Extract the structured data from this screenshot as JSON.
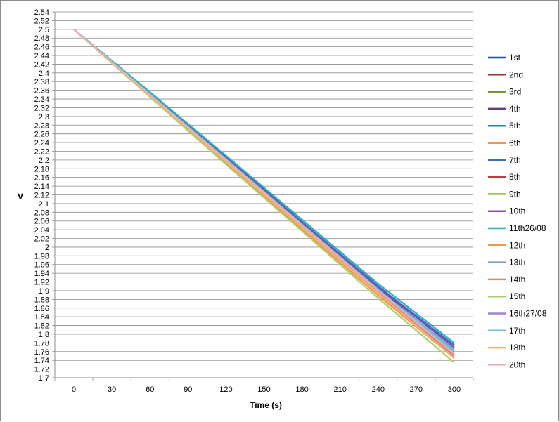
{
  "chart_data": {
    "type": "line",
    "title": "",
    "xlabel": "Time (s)",
    "ylabel": "V",
    "x": [
      0,
      60,
      120,
      180,
      240,
      300
    ],
    "xticks": [
      "0",
      "30",
      "60",
      "90",
      "120",
      "150",
      "180",
      "210",
      "240",
      "270",
      "300"
    ],
    "ylim": [
      1.7,
      2.54
    ],
    "yticks": [
      "1.7",
      "1.72",
      "1.74",
      "1.76",
      "1.78",
      "1.8",
      "1.82",
      "1.84",
      "1.86",
      "1.88",
      "1.9",
      "1.92",
      "1.94",
      "1.96",
      "1.98",
      "2",
      "2.02",
      "2.04",
      "2.06",
      "2.08",
      "2.1",
      "2.12",
      "2.14",
      "2.16",
      "2.18",
      "2.2",
      "2.22",
      "2.24",
      "2.26",
      "2.28",
      "2.3",
      "2.32",
      "2.34",
      "2.36",
      "2.38",
      "2.4",
      "2.42",
      "2.44",
      "2.46",
      "2.48",
      "2.5",
      "2.52",
      "2.54"
    ],
    "grid": "horizontal",
    "legend_position": "right",
    "series": [
      {
        "name": "1st",
        "color": "#1f4e9c",
        "values": [
          2.5,
          2.352,
          2.205,
          2.056,
          1.908,
          1.77
        ]
      },
      {
        "name": "2nd",
        "color": "#9e2a2a",
        "values": [
          2.5,
          2.35,
          2.2,
          2.049,
          1.899,
          1.75
        ]
      },
      {
        "name": "3rd",
        "color": "#6f8f2a",
        "values": [
          2.5,
          2.351,
          2.203,
          2.052,
          1.903,
          1.755
        ]
      },
      {
        "name": "4th",
        "color": "#5b3f86",
        "values": [
          2.5,
          2.352,
          2.204,
          2.055,
          1.906,
          1.76
        ]
      },
      {
        "name": "5th",
        "color": "#1f8fa3",
        "values": [
          2.5,
          2.353,
          2.207,
          2.058,
          1.911,
          1.77
        ]
      },
      {
        "name": "6th",
        "color": "#e0791d",
        "values": [
          2.5,
          2.349,
          2.199,
          2.046,
          1.896,
          1.745
        ]
      },
      {
        "name": "7th",
        "color": "#3a6fc4",
        "values": [
          2.5,
          2.353,
          2.206,
          2.057,
          1.91,
          1.775
        ]
      },
      {
        "name": "8th",
        "color": "#c43a37",
        "values": [
          2.5,
          2.348,
          2.196,
          2.046,
          1.895,
          1.745
        ]
      },
      {
        "name": "9th",
        "color": "#8fbf3a",
        "values": [
          2.5,
          2.35,
          2.198,
          2.049,
          1.898,
          1.75
        ]
      },
      {
        "name": "10th",
        "color": "#7a4fb0",
        "values": [
          2.5,
          2.352,
          2.205,
          2.056,
          1.908,
          1.77
        ]
      },
      {
        "name": "11th26/08",
        "color": "#2aaec9",
        "values": [
          2.5,
          2.356,
          2.21,
          2.063,
          1.916,
          1.78
        ]
      },
      {
        "name": "12th",
        "color": "#f79646",
        "values": [
          2.5,
          2.346,
          2.193,
          2.041,
          1.889,
          1.745
        ]
      },
      {
        "name": "13th",
        "color": "#7b9ed8",
        "values": [
          2.5,
          2.351,
          2.202,
          2.052,
          1.902,
          1.765
        ]
      },
      {
        "name": "14th",
        "color": "#d98683",
        "values": [
          2.5,
          2.349,
          2.198,
          2.048,
          1.897,
          1.75
        ]
      },
      {
        "name": "15th",
        "color": "#a9cf6c",
        "values": [
          2.5,
          2.345,
          2.19,
          2.037,
          1.883,
          1.735
        ]
      },
      {
        "name": "16th27/08",
        "color": "#9c86c4",
        "values": [
          2.5,
          2.35,
          2.2,
          2.05,
          1.9,
          1.755
        ]
      },
      {
        "name": "17th",
        "color": "#6fc3d6",
        "values": [
          2.5,
          2.351,
          2.202,
          2.052,
          1.903,
          1.76
        ]
      },
      {
        "name": "18th",
        "color": "#f9b073",
        "values": [
          2.5,
          2.348,
          2.196,
          2.045,
          1.894,
          1.745
        ]
      },
      {
        "name": "20th",
        "color": "#e6b1b0",
        "values": [
          2.5,
          2.35,
          2.2,
          2.05,
          1.9,
          1.755
        ]
      }
    ]
  }
}
